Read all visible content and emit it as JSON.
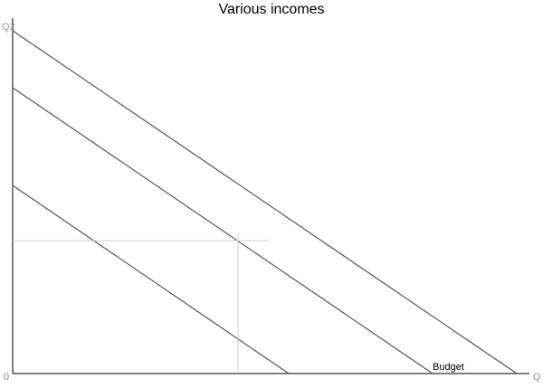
{
  "title": "Various incomes",
  "y_axis_label": "Q2",
  "x_axis_label": "Q",
  "origin_label": "0",
  "budget_label": "Budget",
  "line_color": "#555555",
  "guide_color": "#cccccc"
}
